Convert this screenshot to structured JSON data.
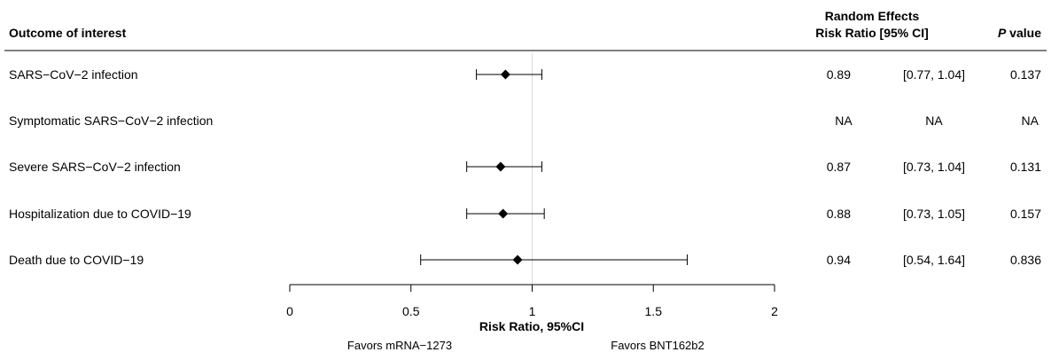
{
  "chart_data": {
    "type": "forest",
    "title": "",
    "headers": {
      "outcome": "Outcome of interest",
      "effect_line1": "Random Effects",
      "effect_line2": "Risk Ratio [95% CI]",
      "pvalue_italic": "P",
      "pvalue_rest": " value"
    },
    "rows": [
      {
        "outcome": "SARS−CoV−2 infection",
        "rr": 0.89,
        "lo": 0.77,
        "hi": 1.04,
        "rr_text": "0.89",
        "ci_text": "[0.77, 1.04]",
        "p_text": "0.137"
      },
      {
        "outcome": "Symptomatic SARS−CoV−2 infection",
        "rr": null,
        "lo": null,
        "hi": null,
        "rr_text": "NA",
        "ci_text": "NA",
        "p_text": "NA"
      },
      {
        "outcome": "Severe SARS−CoV−2 infection",
        "rr": 0.87,
        "lo": 0.73,
        "hi": 1.04,
        "rr_text": "0.87",
        "ci_text": "[0.73, 1.04]",
        "p_text": "0.131"
      },
      {
        "outcome": "Hospitalization due to COVID−19",
        "rr": 0.88,
        "lo": 0.73,
        "hi": 1.05,
        "rr_text": "0.88",
        "ci_text": "[0.73, 1.05]",
        "p_text": "0.157"
      },
      {
        "outcome": "Death due to COVID−19",
        "rr": 0.94,
        "lo": 0.54,
        "hi": 1.64,
        "rr_text": "0.94",
        "ci_text": "[0.54, 1.64]",
        "p_text": "0.836"
      }
    ],
    "x_axis": {
      "label": "Risk Ratio, 95%CI",
      "xlim": [
        0,
        2
      ],
      "ticks": [
        0,
        0.5,
        1,
        1.5,
        2
      ],
      "tick_labels": [
        "0",
        "0.5",
        "1",
        "1.5",
        "2"
      ],
      "reference_line": 1
    },
    "favors": {
      "left": "Favors mRNA−1273",
      "right": "Favors BNT162b2"
    },
    "colors": {
      "marker": "#000000",
      "reference_line": "#d9d9d9",
      "rule": "#000000"
    }
  }
}
